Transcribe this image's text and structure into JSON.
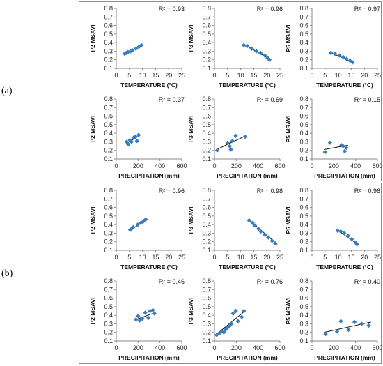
{
  "panel_labels": [
    "(a)",
    "(b)"
  ],
  "chart_data": [
    {
      "type": "scatter",
      "panel": "(a)",
      "ylabel": "P2 MSAVI",
      "xlabel": "TEMPERATURE (°C)",
      "r2": "R² = 0.93",
      "xlim": [
        0,
        25
      ],
      "ylim": [
        0.1,
        0.8
      ],
      "xticks": [
        0,
        5,
        10,
        15,
        20,
        25
      ],
      "yticks": [
        0.1,
        0.2,
        0.3,
        0.4,
        0.5,
        0.6,
        0.7,
        0.8
      ],
      "x": [
        3.2,
        3.8,
        4.5,
        5.5,
        6.2,
        7.5,
        8.6,
        9.6
      ],
      "y": [
        0.27,
        0.28,
        0.29,
        0.3,
        0.31,
        0.33,
        0.35,
        0.37
      ],
      "trendline": {
        "x": [
          3,
          10
        ],
        "y": [
          0.27,
          0.375
        ]
      }
    },
    {
      "type": "scatter",
      "panel": "(a)",
      "ylabel": "P3 MSAVI",
      "xlabel": "TEMPERATURE (°C)",
      "r2": "R² = 0.96",
      "xlim": [
        0,
        25
      ],
      "ylim": [
        0.1,
        0.8
      ],
      "xticks": [
        0,
        5,
        10,
        15,
        20,
        25
      ],
      "yticks": [
        0.1,
        0.2,
        0.3,
        0.4,
        0.5,
        0.6,
        0.7,
        0.8
      ],
      "x": [
        11.2,
        12.5,
        14.2,
        16,
        17.6,
        19.2,
        20.3,
        21
      ],
      "y": [
        0.37,
        0.36,
        0.33,
        0.3,
        0.28,
        0.25,
        0.22,
        0.2
      ],
      "trendline": {
        "x": [
          11,
          21.5
        ],
        "y": [
          0.385,
          0.2
        ]
      }
    },
    {
      "type": "scatter",
      "panel": "(a)",
      "ylabel": "P5 MSAVI",
      "xlabel": "TEMPERATURE (°C)",
      "r2": "R² = 0.97",
      "xlim": [
        0,
        25
      ],
      "ylim": [
        0.1,
        0.8
      ],
      "xticks": [
        0,
        5,
        10,
        15,
        20,
        25
      ],
      "yticks": [
        0.1,
        0.2,
        0.3,
        0.4,
        0.5,
        0.6,
        0.7,
        0.8
      ],
      "x": [
        7.2,
        8.8,
        10.5,
        12,
        13.2,
        14.5,
        15.5
      ],
      "y": [
        0.28,
        0.27,
        0.25,
        0.23,
        0.21,
        0.19,
        0.17
      ],
      "trendline": {
        "x": [
          7,
          16
        ],
        "y": [
          0.285,
          0.165
        ]
      }
    },
    {
      "type": "scatter",
      "panel": "(a)",
      "ylabel": "P2 MSAVI",
      "xlabel": "PRECIPITATION  (mm)",
      "r2": "R² = 0.37",
      "xlim": [
        0,
        600
      ],
      "ylim": [
        0.1,
        0.8
      ],
      "xticks": [
        0,
        200,
        400,
        600
      ],
      "yticks": [
        0.1,
        0.2,
        0.3,
        0.4,
        0.5,
        0.6,
        0.7,
        0.8
      ],
      "x": [
        95,
        110,
        125,
        140,
        160,
        175,
        190,
        205
      ],
      "y": [
        0.3,
        0.27,
        0.32,
        0.3,
        0.35,
        0.36,
        0.31,
        0.38
      ],
      "trendline": {
        "x": [
          90,
          210
        ],
        "y": [
          0.28,
          0.37
        ]
      }
    },
    {
      "type": "scatter",
      "panel": "(a)",
      "ylabel": "P3 MSAVI",
      "xlabel": "PRECIPITATION  (mm)",
      "r2": "R² = 0.69",
      "xlim": [
        0,
        600
      ],
      "ylim": [
        0.1,
        0.8
      ],
      "xticks": [
        0,
        200,
        400,
        600
      ],
      "yticks": [
        0.1,
        0.2,
        0.3,
        0.4,
        0.5,
        0.6,
        0.7,
        0.8
      ],
      "x": [
        25,
        120,
        140,
        150,
        165,
        195,
        280
      ],
      "y": [
        0.2,
        0.29,
        0.25,
        0.21,
        0.31,
        0.37,
        0.36
      ],
      "trendline": {
        "x": [
          20,
          285
        ],
        "y": [
          0.21,
          0.37
        ]
      }
    },
    {
      "type": "scatter",
      "panel": "(a)",
      "ylabel": "P5 MSAVI",
      "xlabel": "PRECIPITATION  (mm)",
      "r2": "R² = 0.15",
      "xlim": [
        0,
        600
      ],
      "ylim": [
        0.1,
        0.8
      ],
      "xticks": [
        0,
        200,
        400,
        600
      ],
      "yticks": [
        0.1,
        0.2,
        0.3,
        0.4,
        0.5,
        0.6,
        0.7,
        0.8
      ],
      "x": [
        120,
        165,
        270,
        285,
        300,
        315
      ],
      "y": [
        0.18,
        0.29,
        0.26,
        0.25,
        0.19,
        0.23
      ],
      "trendline": {
        "x": [
          110,
          330
        ],
        "y": [
          0.21,
          0.26
        ]
      }
    },
    {
      "type": "scatter",
      "panel": "(b)",
      "ylabel": "P2 MSAVI",
      "xlabel": "TEMPERATURE (°C)",
      "r2": "R² = 0.96",
      "xlim": [
        0,
        25
      ],
      "ylim": [
        0.1,
        0.8
      ],
      "xticks": [
        0,
        5,
        10,
        15,
        20,
        25
      ],
      "yticks": [
        0.1,
        0.2,
        0.3,
        0.4,
        0.5,
        0.6,
        0.7,
        0.8
      ],
      "x": [
        5.3,
        5.8,
        6.5,
        8.2,
        9.4,
        10.4,
        11.2
      ],
      "y": [
        0.34,
        0.35,
        0.37,
        0.4,
        0.42,
        0.44,
        0.46
      ],
      "trendline": {
        "x": [
          5,
          12
        ],
        "y": [
          0.33,
          0.465
        ]
      }
    },
    {
      "type": "scatter",
      "panel": "(b)",
      "ylabel": "P3 MSAVI",
      "xlabel": "TEMPERATURE (°C)",
      "r2": "R² = 0.98",
      "xlim": [
        0,
        25
      ],
      "ylim": [
        0.1,
        0.8
      ],
      "xticks": [
        0,
        5,
        10,
        15,
        20,
        25
      ],
      "yticks": [
        0.1,
        0.2,
        0.3,
        0.4,
        0.5,
        0.6,
        0.7,
        0.8
      ],
      "x": [
        13.2,
        14.5,
        15.4,
        16.8,
        17.7,
        19.3,
        20.6,
        22,
        23.2
      ],
      "y": [
        0.45,
        0.42,
        0.39,
        0.35,
        0.32,
        0.28,
        0.25,
        0.21,
        0.18
      ],
      "trendline": {
        "x": [
          13,
          24
        ],
        "y": [
          0.46,
          0.17
        ]
      }
    },
    {
      "type": "scatter",
      "panel": "(b)",
      "ylabel": "P5 MSAVI",
      "xlabel": "TEMPERATURE (°C)",
      "r2": "R² = 0.96",
      "xlim": [
        0,
        25
      ],
      "ylim": [
        0.1,
        0.8
      ],
      "xticks": [
        0,
        5,
        10,
        15,
        20,
        25
      ],
      "yticks": [
        0.1,
        0.2,
        0.3,
        0.4,
        0.5,
        0.6,
        0.7,
        0.8
      ],
      "x": [
        9.8,
        11,
        12.3,
        13.8,
        15.2,
        16.6,
        17.2
      ],
      "y": [
        0.33,
        0.32,
        0.3,
        0.27,
        0.23,
        0.19,
        0.17
      ],
      "trendline": {
        "x": [
          9.5,
          18
        ],
        "y": [
          0.34,
          0.16
        ]
      }
    },
    {
      "type": "scatter",
      "panel": "(b)",
      "ylabel": "P2 MSAVI",
      "xlabel": "PRECIPITATION  (mm)",
      "r2": "R² = 0.46",
      "xlim": [
        0,
        600
      ],
      "ylim": [
        0.1,
        0.8
      ],
      "xticks": [
        0,
        200,
        400,
        600
      ],
      "yticks": [
        0.1,
        0.2,
        0.3,
        0.4,
        0.5,
        0.6,
        0.7,
        0.8
      ],
      "x": [
        180,
        200,
        215,
        240,
        265,
        295,
        310,
        335,
        350
      ],
      "y": [
        0.35,
        0.39,
        0.34,
        0.36,
        0.43,
        0.37,
        0.45,
        0.46,
        0.42
      ],
      "trendline": {
        "x": [
          170,
          355
        ],
        "y": [
          0.345,
          0.43
        ]
      }
    },
    {
      "type": "scatter",
      "panel": "(b)",
      "ylabel": "P3 MSAVI",
      "xlabel": "PRECIPITATION  (mm)",
      "r2": "R² = 0.76",
      "xlim": [
        0,
        600
      ],
      "ylim": [
        0.1,
        0.8
      ],
      "xticks": [
        0,
        200,
        400,
        600
      ],
      "yticks": [
        0.1,
        0.2,
        0.3,
        0.4,
        0.5,
        0.6,
        0.7,
        0.8
      ],
      "x": [
        20,
        45,
        65,
        85,
        100,
        115,
        135,
        155,
        170,
        195,
        215,
        250,
        270
      ],
      "y": [
        0.17,
        0.19,
        0.21,
        0.2,
        0.23,
        0.25,
        0.27,
        0.3,
        0.42,
        0.45,
        0.33,
        0.38,
        0.45
      ],
      "trendline": {
        "x": [
          10,
          280
        ],
        "y": [
          0.17,
          0.45
        ]
      }
    },
    {
      "type": "scatter",
      "panel": "(b)",
      "ylabel": "P5 MSAVI",
      "xlabel": "PRECIPITATION  (mm)",
      "r2": "R² = 0.40",
      "xlim": [
        0,
        600
      ],
      "ylim": [
        0.1,
        0.8
      ],
      "xticks": [
        0,
        200,
        400,
        600
      ],
      "yticks": [
        0.1,
        0.2,
        0.3,
        0.4,
        0.5,
        0.6,
        0.7,
        0.8
      ],
      "x": [
        125,
        230,
        265,
        335,
        390,
        455,
        520
      ],
      "y": [
        0.18,
        0.21,
        0.33,
        0.23,
        0.32,
        0.3,
        0.28
      ],
      "trendline": {
        "x": [
          110,
          540
        ],
        "y": [
          0.2,
          0.32
        ]
      }
    }
  ]
}
